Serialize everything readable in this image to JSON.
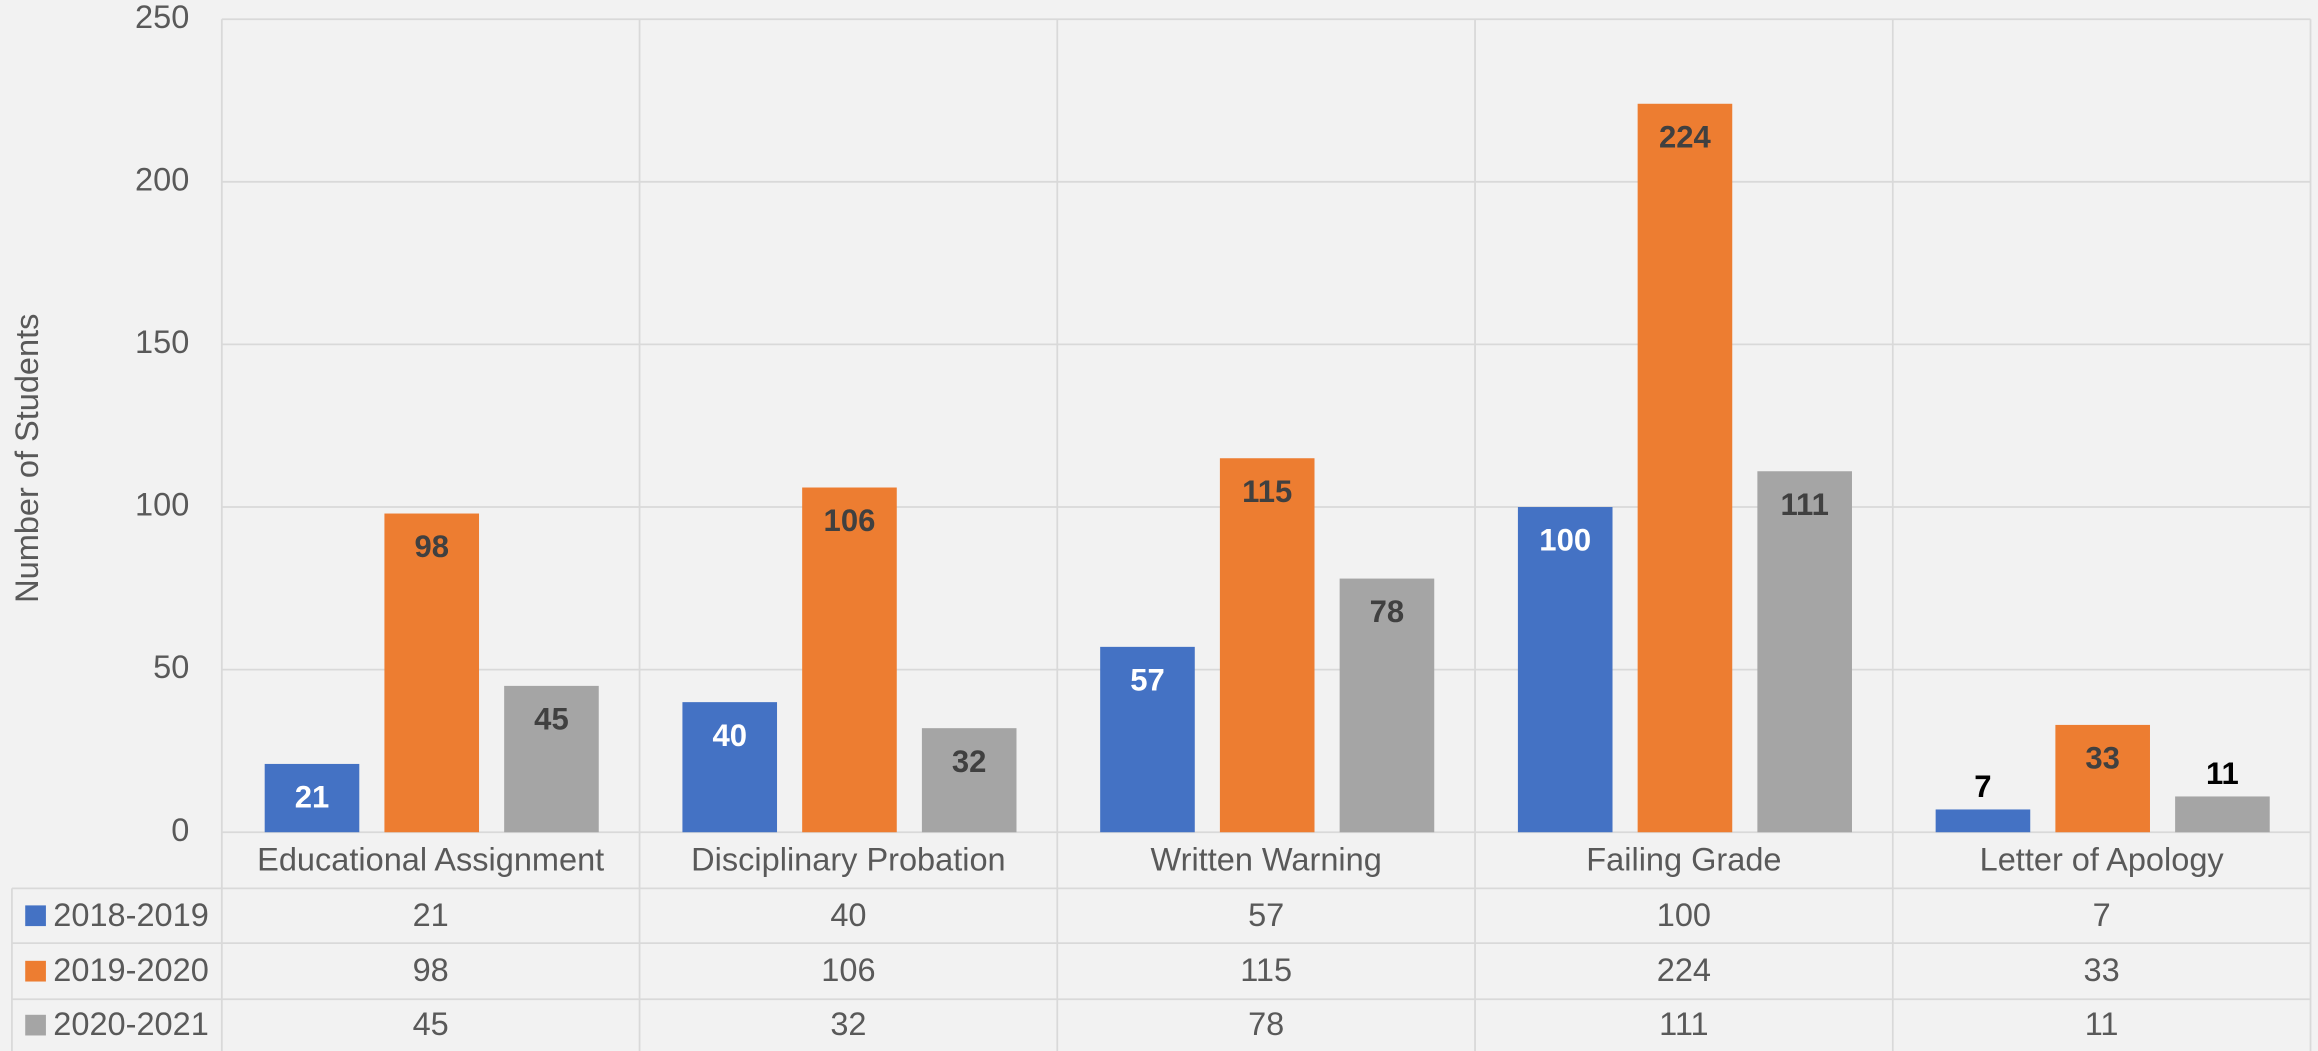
{
  "chart_data": {
    "type": "bar",
    "y_label": "Number of Students",
    "categories": [
      "Educational Assignment",
      "Disciplinary Probation",
      "Written Warning",
      "Failing Grade",
      "Letter of Apology"
    ],
    "series": [
      {
        "name": "2018-2019",
        "color": "#4472c4",
        "values": [
          21,
          40,
          57,
          100,
          7
        ]
      },
      {
        "name": "2019-2020",
        "color": "#ed7d31",
        "values": [
          98,
          106,
          115,
          224,
          33
        ]
      },
      {
        "name": "2020-2021",
        "color": "#a5a5a5",
        "values": [
          45,
          32,
          78,
          111,
          11
        ]
      }
    ],
    "ylim": [
      0,
      250
    ],
    "yticks": [
      0,
      50,
      100,
      150,
      200,
      250
    ],
    "grid": true,
    "data_table": true
  }
}
